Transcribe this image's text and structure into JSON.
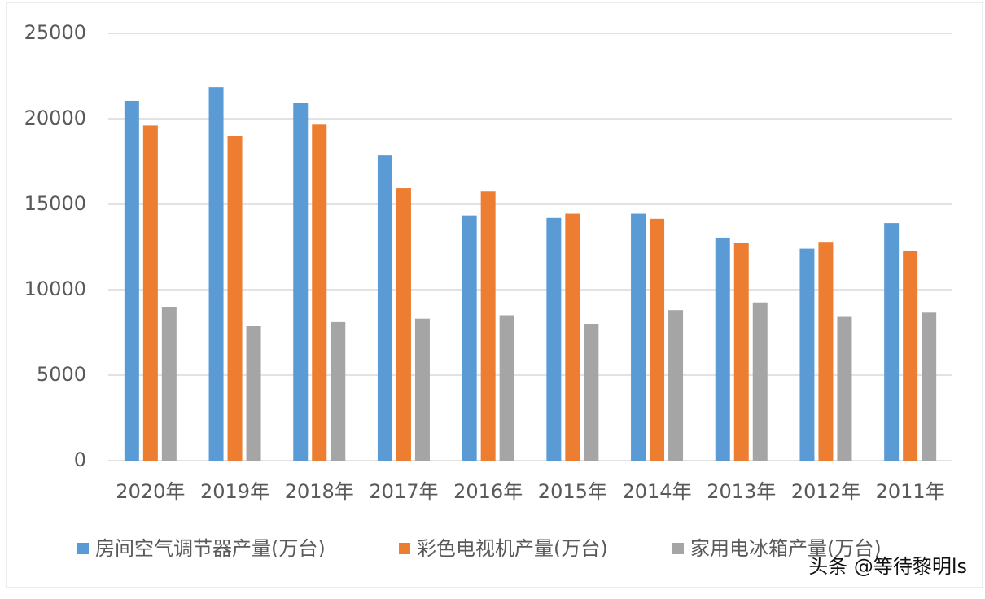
{
  "chart_data": {
    "type": "bar",
    "categories": [
      "2020年",
      "2019年",
      "2018年",
      "2017年",
      "2016年",
      "2015年",
      "2014年",
      "2013年",
      "2012年",
      "2011年"
    ],
    "series": [
      {
        "name": "房间空气调节器产量(万台)",
        "color": "#5b9bd5",
        "values": [
          21050,
          21850,
          20950,
          17850,
          14350,
          14200,
          14450,
          13050,
          12400,
          13900
        ]
      },
      {
        "name": "彩色电视机产量(万台)",
        "color": "#ed7d31",
        "values": [
          19600,
          19000,
          19700,
          15950,
          15750,
          14450,
          14150,
          12750,
          12800,
          12250
        ]
      },
      {
        "name": "家用电冰箱产量(万台)",
        "color": "#a5a5a5",
        "values": [
          9000,
          7900,
          8100,
          8300,
          8500,
          8000,
          8800,
          9250,
          8450,
          8700
        ]
      }
    ],
    "ylim": [
      0,
      25000
    ],
    "yticks": [
      0,
      5000,
      10000,
      15000,
      20000,
      25000
    ],
    "grid": true,
    "legend": "bottom",
    "watermark": "头条 @等待黎明ls"
  }
}
